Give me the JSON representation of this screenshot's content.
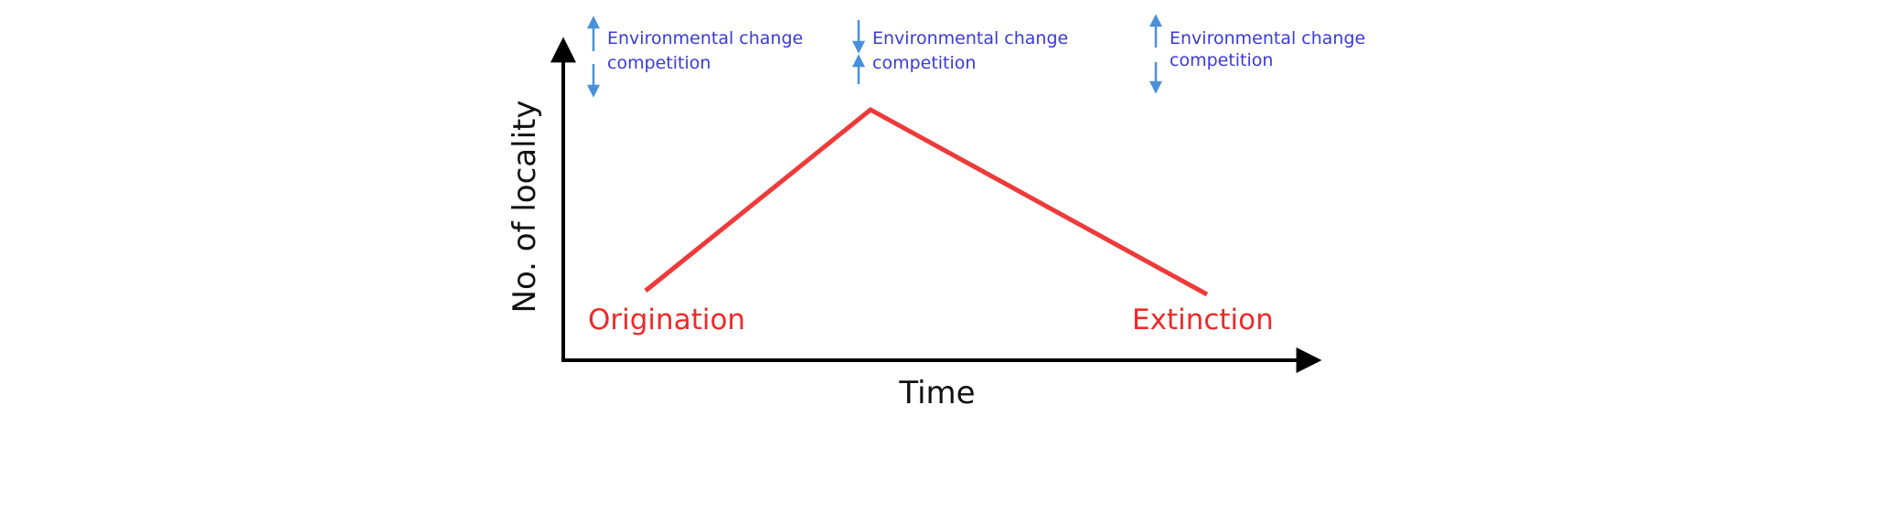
{
  "axes": {
    "x_label": "Time",
    "y_label": "No. of locality"
  },
  "phases": {
    "start": "Origination",
    "end": "Extinction"
  },
  "annotations": [
    {
      "env_label": "Environmental change",
      "env_trend": "increase",
      "comp_label": "competition",
      "comp_trend": "decrease"
    },
    {
      "env_label": "Environmental change",
      "env_trend": "decrease",
      "comp_label": "competition",
      "comp_trend": "increase"
    },
    {
      "env_label": "Environmental change",
      "env_trend": "increase",
      "comp_label": "competition",
      "comp_trend": "decrease"
    }
  ],
  "colors": {
    "curve": "#ee3a3a",
    "phase_text": "#ee2a2a",
    "annotation_text": "#3a3ad8",
    "trend_arrow": "#4a90d9",
    "axis": "#000000"
  }
}
